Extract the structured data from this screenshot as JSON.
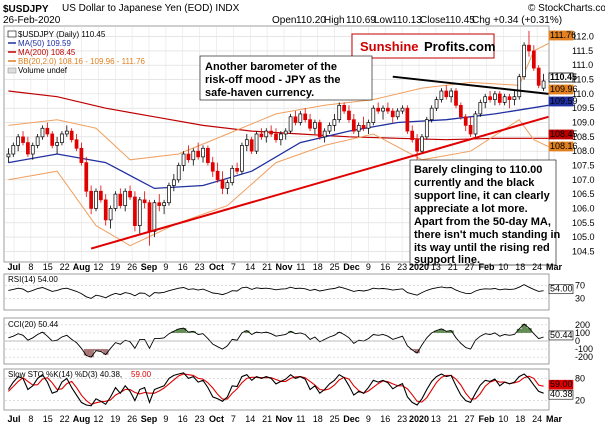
{
  "header": {
    "symbol": "$USDJPY",
    "description": "US Dollar to Japanese Yen (EOD) INDX",
    "date": "26-Feb-2020",
    "open_label": "Open",
    "open": "110.20",
    "high_label": "High",
    "high": "110.69",
    "low_label": "Low",
    "low": "110.13",
    "close_label": "Close",
    "close": "110.45",
    "change": "Chg +0.34 (+0.31%)",
    "copyright": "© StockCharts.com"
  },
  "legend": {
    "main": "$USDJPY (Daily) 110.45",
    "ma50": "MA(50) 109.59",
    "ma200": "MA(200) 108.45",
    "bb": "BB(20,2.0) 108.16 - 109.96 - 111.76",
    "volume": "Volume undef"
  },
  "logo": {
    "part1": "Sunshine",
    "part2": "Profits.com"
  },
  "annotations": {
    "top": [
      "Another barometer of the",
      "risk-off mood - JPY as the",
      "safe-haven currency."
    ],
    "bottom": [
      "Barely clinging to 110.00",
      "currently and the black",
      "support line, it can clearly",
      "appreciate a lot more.",
      "Apart from the 50-day MA,",
      "there isn't much standing in",
      "its way until the rising red",
      "support line."
    ]
  },
  "chart_data": {
    "type": "candlestick",
    "title": "$USDJPY (Daily)",
    "x_labels": [
      "Jul",
      "8",
      "15",
      "22",
      "Aug",
      "12",
      "19",
      "26",
      "Sep",
      "9",
      "16",
      "23",
      "Oct",
      "7",
      "14",
      "21",
      "Nov",
      "11",
      "18",
      "25",
      "Dec",
      "9",
      "16",
      "23",
      "2020",
      "13",
      "21",
      "27",
      "Feb",
      "10",
      "18",
      "24",
      "Mar"
    ],
    "y_ticks": [
      104.5,
      105.0,
      105.5,
      106.0,
      106.5,
      107.0,
      107.5,
      108.0,
      108.5,
      109.0,
      109.5,
      110.0,
      110.5,
      111.0,
      111.5,
      112.0
    ],
    "ylim": [
      104.2,
      112.3
    ],
    "price_labels": [
      {
        "text": "111.76",
        "color": "#e08020"
      },
      {
        "text": "110.45",
        "color": "#000000"
      },
      {
        "text": "109.96",
        "color": "#e08020"
      },
      {
        "text": "109.59",
        "color": "#2030a0"
      },
      {
        "text": "108.45",
        "color": "#c00000"
      },
      {
        "text": "108.16",
        "color": "#e08020"
      }
    ],
    "colors": {
      "up": "#000000",
      "down": "#e00000",
      "ma50": "#2030a0",
      "ma200": "#c00000",
      "bb": "#f0a060",
      "trend": "#e00000",
      "support": "#000000",
      "rsi": "#000000",
      "cci": "#000000",
      "cci_fill": "#4a7a3a",
      "cci_neg_fill": "#9a6060",
      "sto_k": "#000000",
      "sto_d": "#e00000"
    },
    "candles": [
      [
        107.8,
        108.1,
        107.6,
        107.9
      ],
      [
        107.9,
        108.3,
        107.8,
        108.2
      ],
      [
        108.2,
        108.6,
        108.0,
        108.5
      ],
      [
        108.5,
        108.7,
        108.2,
        108.3
      ],
      [
        108.3,
        108.5,
        107.8,
        107.9
      ],
      [
        107.9,
        108.3,
        107.7,
        108.2
      ],
      [
        108.2,
        108.6,
        108.1,
        108.5
      ],
      [
        108.5,
        108.9,
        108.4,
        108.8
      ],
      [
        108.8,
        109.0,
        108.5,
        108.6
      ],
      [
        108.6,
        108.7,
        108.1,
        108.2
      ],
      [
        108.2,
        108.5,
        107.9,
        108.3
      ],
      [
        108.3,
        108.7,
        108.2,
        108.6
      ],
      [
        108.6,
        108.9,
        108.5,
        108.7
      ],
      [
        108.7,
        108.8,
        108.3,
        108.4
      ],
      [
        108.4,
        108.6,
        108.0,
        108.1
      ],
      [
        108.1,
        108.3,
        107.5,
        107.6
      ],
      [
        107.6,
        107.8,
        106.4,
        106.6
      ],
      [
        106.6,
        106.8,
        105.8,
        106.0
      ],
      [
        106.0,
        106.7,
        105.9,
        106.6
      ],
      [
        106.6,
        106.8,
        106.2,
        106.3
      ],
      [
        106.3,
        106.5,
        105.4,
        105.6
      ],
      [
        105.6,
        106.1,
        105.3,
        106.0
      ],
      [
        106.0,
        106.6,
        105.9,
        106.5
      ],
      [
        106.5,
        106.7,
        106.0,
        106.1
      ],
      [
        106.1,
        106.7,
        105.9,
        106.6
      ],
      [
        106.6,
        106.8,
        106.3,
        106.4
      ],
      [
        106.4,
        106.6,
        105.2,
        105.4
      ],
      [
        105.4,
        106.4,
        105.1,
        106.3
      ],
      [
        106.3,
        106.6,
        106.0,
        106.2
      ],
      [
        106.2,
        106.3,
        104.7,
        105.2
      ],
      [
        105.2,
        106.3,
        105.0,
        106.2
      ],
      [
        106.2,
        106.5,
        105.9,
        106.1
      ],
      [
        106.1,
        106.3,
        105.8,
        106.2
      ],
      [
        106.2,
        106.9,
        106.1,
        106.8
      ],
      [
        106.8,
        107.2,
        106.6,
        107.0
      ],
      [
        107.0,
        107.6,
        106.9,
        107.5
      ],
      [
        107.5,
        108.0,
        107.3,
        107.9
      ],
      [
        107.9,
        108.2,
        107.6,
        107.7
      ],
      [
        107.7,
        108.1,
        107.5,
        108.0
      ],
      [
        108.0,
        108.3,
        107.7,
        107.8
      ],
      [
        107.8,
        108.2,
        107.6,
        108.1
      ],
      [
        108.1,
        108.2,
        107.5,
        107.6
      ],
      [
        107.6,
        107.8,
        107.1,
        107.3
      ],
      [
        107.3,
        107.6,
        106.9,
        107.0
      ],
      [
        107.0,
        107.3,
        106.5,
        106.7
      ],
      [
        106.7,
        107.0,
        106.5,
        106.9
      ],
      [
        106.9,
        107.5,
        106.8,
        107.4
      ],
      [
        107.4,
        107.6,
        107.2,
        107.3
      ],
      [
        107.3,
        108.3,
        107.2,
        108.2
      ],
      [
        108.2,
        108.6,
        108.0,
        108.4
      ],
      [
        108.4,
        108.5,
        107.9,
        108.0
      ],
      [
        108.0,
        108.7,
        107.9,
        108.6
      ],
      [
        108.6,
        108.8,
        108.4,
        108.5
      ],
      [
        108.5,
        108.8,
        108.3,
        108.7
      ],
      [
        108.7,
        108.9,
        108.5,
        108.6
      ],
      [
        108.6,
        108.8,
        108.3,
        108.4
      ],
      [
        108.4,
        108.7,
        108.2,
        108.6
      ],
      [
        108.6,
        108.8,
        108.4,
        108.7
      ],
      [
        108.7,
        109.3,
        108.6,
        109.2
      ],
      [
        109.2,
        109.4,
        108.9,
        109.0
      ],
      [
        109.0,
        109.4,
        108.9,
        109.3
      ],
      [
        109.3,
        109.5,
        109.0,
        109.1
      ],
      [
        109.1,
        109.3,
        108.7,
        108.8
      ],
      [
        108.8,
        109.1,
        108.6,
        109.0
      ],
      [
        109.0,
        109.1,
        108.4,
        108.5
      ],
      [
        108.5,
        108.8,
        108.3,
        108.7
      ],
      [
        108.7,
        109.0,
        108.6,
        108.9
      ],
      [
        108.9,
        109.3,
        108.7,
        109.1
      ],
      [
        109.1,
        109.7,
        109.0,
        109.6
      ],
      [
        109.6,
        109.7,
        109.3,
        109.4
      ],
      [
        109.4,
        109.6,
        109.0,
        109.1
      ],
      [
        109.1,
        109.3,
        108.6,
        108.7
      ],
      [
        108.7,
        109.0,
        108.5,
        108.9
      ],
      [
        108.9,
        109.2,
        108.7,
        108.8
      ],
      [
        108.8,
        109.1,
        108.6,
        109.0
      ],
      [
        109.0,
        109.6,
        108.9,
        109.5
      ],
      [
        109.5,
        109.7,
        109.3,
        109.4
      ],
      [
        109.4,
        109.6,
        109.1,
        109.5
      ],
      [
        109.5,
        109.7,
        109.3,
        109.4
      ],
      [
        109.4,
        109.5,
        109.0,
        109.2
      ],
      [
        109.2,
        109.5,
        109.1,
        109.4
      ],
      [
        109.4,
        109.6,
        109.3,
        109.5
      ],
      [
        109.5,
        109.6,
        108.6,
        108.7
      ],
      [
        108.7,
        108.9,
        108.3,
        108.4
      ],
      [
        108.4,
        108.6,
        107.7,
        108.0
      ],
      [
        108.0,
        108.6,
        107.9,
        108.5
      ],
      [
        108.5,
        109.2,
        108.4,
        109.1
      ],
      [
        109.1,
        109.6,
        109.0,
        109.5
      ],
      [
        109.5,
        109.9,
        109.4,
        109.8
      ],
      [
        109.8,
        110.2,
        109.7,
        110.1
      ],
      [
        110.1,
        110.3,
        109.8,
        109.9
      ],
      [
        109.9,
        110.2,
        109.7,
        110.1
      ],
      [
        110.1,
        110.2,
        109.5,
        109.6
      ],
      [
        109.6,
        109.7,
        109.1,
        109.2
      ],
      [
        109.2,
        109.3,
        108.7,
        108.9
      ],
      [
        108.9,
        109.2,
        108.5,
        108.6
      ],
      [
        108.6,
        109.4,
        108.5,
        109.3
      ],
      [
        109.3,
        109.8,
        109.2,
        109.7
      ],
      [
        109.7,
        110.0,
        109.5,
        109.9
      ],
      [
        109.9,
        110.1,
        109.7,
        109.8
      ],
      [
        109.8,
        110.1,
        109.6,
        110.0
      ],
      [
        110.0,
        110.1,
        109.6,
        109.7
      ],
      [
        109.7,
        110.0,
        109.6,
        109.9
      ],
      [
        109.9,
        110.0,
        109.5,
        109.8
      ],
      [
        109.8,
        110.1,
        109.6,
        109.9
      ],
      [
        109.9,
        110.7,
        109.8,
        110.6
      ],
      [
        110.6,
        111.8,
        110.5,
        111.7
      ],
      [
        111.7,
        112.2,
        111.3,
        111.5
      ],
      [
        111.5,
        111.7,
        110.8,
        110.9
      ],
      [
        110.9,
        111.0,
        110.2,
        110.3
      ],
      [
        110.2,
        110.7,
        110.1,
        110.45
      ]
    ],
    "ma50": [
      [
        0,
        107.6
      ],
      [
        10,
        107.9
      ],
      [
        20,
        107.6
      ],
      [
        30,
        106.7
      ],
      [
        40,
        106.8
      ],
      [
        50,
        107.3
      ],
      [
        60,
        108.3
      ],
      [
        70,
        108.7
      ],
      [
        80,
        109.0
      ],
      [
        90,
        109.1
      ],
      [
        100,
        109.3
      ],
      [
        111,
        109.6
      ]
    ],
    "ma200": [
      [
        0,
        110.1
      ],
      [
        10,
        109.9
      ],
      [
        20,
        109.5
      ],
      [
        30,
        109.2
      ],
      [
        40,
        108.9
      ],
      [
        50,
        108.7
      ],
      [
        60,
        108.6
      ],
      [
        70,
        108.5
      ],
      [
        80,
        108.45
      ],
      [
        90,
        108.4
      ],
      [
        100,
        108.45
      ],
      [
        111,
        108.45
      ]
    ],
    "bb_upper": [
      [
        0,
        108.9
      ],
      [
        10,
        109.1
      ],
      [
        18,
        108.8
      ],
      [
        25,
        107.7
      ],
      [
        35,
        107.9
      ],
      [
        45,
        108.6
      ],
      [
        55,
        109.3
      ],
      [
        65,
        109.6
      ],
      [
        75,
        109.8
      ],
      [
        85,
        110.2
      ],
      [
        95,
        110.4
      ],
      [
        105,
        110.3
      ],
      [
        108,
        111.5
      ],
      [
        111,
        111.76
      ]
    ],
    "bb_lower": [
      [
        0,
        107.0
      ],
      [
        10,
        107.3
      ],
      [
        18,
        105.4
      ],
      [
        25,
        104.7
      ],
      [
        35,
        105.5
      ],
      [
        45,
        106.1
      ],
      [
        55,
        107.6
      ],
      [
        65,
        108.2
      ],
      [
        75,
        108.6
      ],
      [
        85,
        107.7
      ],
      [
        95,
        108.0
      ],
      [
        105,
        109.1
      ],
      [
        108,
        108.4
      ],
      [
        111,
        108.16
      ]
    ],
    "trendline_red": [
      [
        17,
        104.6
      ],
      [
        111,
        109.2
      ]
    ],
    "support_black": [
      [
        79,
        110.6
      ],
      [
        111,
        110.0
      ]
    ],
    "rsi": {
      "label": "RSI(14) 54.00",
      "ticks": [
        70,
        30
      ],
      "right_label": "54.00",
      "values": [
        55,
        58,
        62,
        59,
        50,
        55,
        61,
        64,
        58,
        52,
        55,
        60,
        62,
        57,
        52,
        45,
        35,
        30,
        40,
        37,
        32,
        40,
        46,
        42,
        48,
        45,
        38,
        47,
        46,
        36,
        48,
        47,
        49,
        54,
        58,
        62,
        64,
        58,
        60,
        56,
        59,
        53,
        47,
        45,
        42,
        47,
        54,
        53,
        63,
        65,
        58,
        63,
        61,
        62,
        60,
        57,
        59,
        60,
        65,
        61,
        62,
        60,
        55,
        58,
        53,
        56,
        59,
        61,
        66,
        62,
        57,
        52,
        55,
        53,
        56,
        62,
        60,
        61,
        59,
        56,
        58,
        60,
        48,
        44,
        40,
        48,
        55,
        60,
        63,
        66,
        63,
        64,
        56,
        50,
        46,
        45,
        53,
        58,
        60,
        59,
        61,
        57,
        59,
        58,
        59,
        65,
        73,
        65,
        58,
        52,
        54
      ]
    },
    "cci": {
      "label": "CCI(20) 50.44",
      "ticks": [
        200,
        100,
        0,
        -100,
        -200
      ],
      "right_label": "50.44",
      "values": [
        40,
        60,
        90,
        70,
        10,
        40,
        80,
        110,
        60,
        0,
        10,
        50,
        70,
        20,
        -20,
        -90,
        -180,
        -200,
        -120,
        -130,
        -170,
        -90,
        -20,
        -40,
        10,
        -10,
        -90,
        20,
        20,
        -90,
        30,
        30,
        40,
        90,
        120,
        150,
        160,
        110,
        120,
        80,
        90,
        30,
        -40,
        -70,
        -100,
        -60,
        20,
        10,
        100,
        130,
        80,
        110,
        100,
        110,
        90,
        60,
        70,
        80,
        120,
        90,
        100,
        80,
        20,
        50,
        -10,
        20,
        50,
        70,
        110,
        80,
        40,
        -30,
        10,
        0,
        30,
        80,
        70,
        80,
        60,
        20,
        40,
        60,
        -60,
        -110,
        -150,
        -50,
        40,
        100,
        130,
        150,
        120,
        130,
        40,
        -30,
        -80,
        -100,
        10,
        60,
        90,
        80,
        100,
        60,
        80,
        70,
        80,
        150,
        210,
        160,
        90,
        30,
        50
      ]
    },
    "sto": {
      "label_black": "Slow STO %K(14) %D(3) 40.38,",
      "label_red": "59.00",
      "ticks": [
        80,
        20
      ],
      "right_label_1": "59.00",
      "right_label_2": "40.38",
      "k": [
        50,
        70,
        85,
        80,
        50,
        60,
        80,
        90,
        70,
        40,
        45,
        70,
        80,
        55,
        35,
        15,
        8,
        6,
        25,
        18,
        10,
        30,
        55,
        40,
        60,
        45,
        20,
        50,
        55,
        15,
        50,
        55,
        60,
        80,
        88,
        92,
        95,
        80,
        85,
        70,
        75,
        55,
        30,
        25,
        18,
        30,
        60,
        58,
        85,
        90,
        75,
        85,
        80,
        85,
        80,
        65,
        72,
        78,
        90,
        80,
        85,
        78,
        50,
        60,
        40,
        50,
        65,
        75,
        90,
        82,
        60,
        35,
        45,
        40,
        55,
        75,
        70,
        75,
        68,
        52,
        60,
        66,
        30,
        15,
        8,
        25,
        50,
        72,
        85,
        92,
        85,
        88,
        60,
        35,
        20,
        15,
        40,
        62,
        75,
        72,
        78,
        60,
        70,
        65,
        70,
        85,
        92,
        80,
        62,
        45,
        40
      ],
      "d": [
        45,
        58,
        72,
        82,
        72,
        62,
        63,
        78,
        82,
        68,
        50,
        52,
        66,
        72,
        55,
        35,
        20,
        10,
        14,
        17,
        18,
        22,
        35,
        42,
        50,
        50,
        42,
        38,
        42,
        40,
        40,
        46,
        54,
        65,
        76,
        87,
        92,
        90,
        88,
        80,
        78,
        68,
        54,
        37,
        24,
        24,
        40,
        52,
        68,
        80,
        83,
        83,
        82,
        82,
        82,
        77,
        72,
        72,
        80,
        84,
        85,
        82,
        72,
        62,
        50,
        48,
        52,
        62,
        76,
        83,
        78,
        60,
        47,
        40,
        46,
        56,
        66,
        73,
        71,
        65,
        60,
        60,
        52,
        36,
        18,
        16,
        28,
        49,
        69,
        83,
        88,
        88,
        78,
        62,
        40,
        24,
        25,
        39,
        59,
        70,
        75,
        70,
        70,
        66,
        68,
        72,
        82,
        86,
        80,
        62,
        59
      ]
    }
  }
}
